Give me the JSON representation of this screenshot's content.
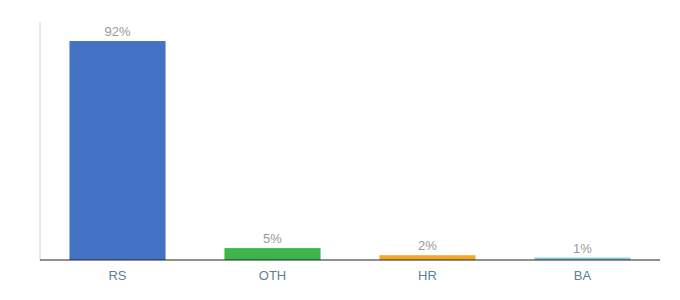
{
  "chart_data": {
    "type": "bar",
    "categories": [
      "RS",
      "OTH",
      "HR",
      "BA"
    ],
    "values": [
      92,
      5,
      2,
      1
    ],
    "value_labels": [
      "92%",
      "5%",
      "2%",
      "1%"
    ],
    "colors": [
      "#4472c4",
      "#3cb54a",
      "#f5a623",
      "#7ec8e3"
    ],
    "ylim": [
      0,
      100
    ],
    "data_labels": true,
    "tick_labels": "x"
  }
}
